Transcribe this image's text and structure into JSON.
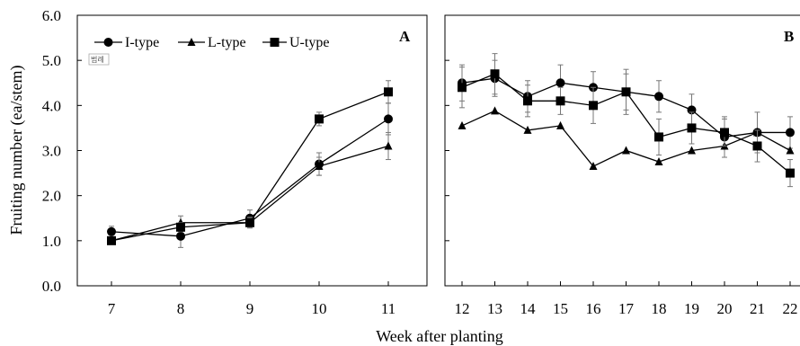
{
  "chart_data": [
    {
      "type": "line",
      "panel_label": "A",
      "x": [
        7,
        8,
        9,
        10,
        11
      ],
      "x_tick_labels": [
        "7",
        "8",
        "9",
        "10",
        "11"
      ],
      "ylim": [
        0,
        6
      ],
      "y_tick_labels": [
        "0.0",
        "1.0",
        "2.0",
        "3.0",
        "4.0",
        "5.0",
        "6.0"
      ],
      "ylabel": "Fruiting number (ea/stem)",
      "xlabel": "Week after planting",
      "legend_placement": "top-left",
      "legend_tag": "범례",
      "series": [
        {
          "name": "I-type",
          "marker": "circle",
          "values": [
            1.2,
            1.1,
            1.5,
            2.7,
            3.7
          ],
          "errors": [
            0.12,
            0.25,
            0.18,
            0.25,
            0.35
          ]
        },
        {
          "name": "L-type",
          "marker": "triangle",
          "values": [
            1.0,
            1.4,
            1.4,
            2.65,
            3.1
          ],
          "errors": [
            0.08,
            0.15,
            0.12,
            0.2,
            0.3
          ]
        },
        {
          "name": "U-type",
          "marker": "square",
          "values": [
            1.0,
            1.3,
            1.4,
            3.7,
            4.3
          ],
          "errors": [
            0.05,
            0.1,
            0.1,
            0.15,
            0.25
          ]
        }
      ]
    },
    {
      "type": "line",
      "panel_label": "B",
      "x": [
        12,
        13,
        14,
        15,
        16,
        17,
        18,
        19,
        20,
        21,
        22
      ],
      "x_tick_labels": [
        "12",
        "13",
        "14",
        "15",
        "16",
        "17",
        "18",
        "19",
        "20",
        "21",
        "22"
      ],
      "ylim": [
        0,
        6
      ],
      "series": [
        {
          "name": "I-type",
          "marker": "circle",
          "values": [
            4.5,
            4.6,
            4.2,
            4.5,
            4.4,
            4.3,
            4.2,
            3.9,
            3.3,
            3.4,
            3.4
          ],
          "errors": [
            0.4,
            0.4,
            0.35,
            0.4,
            0.35,
            0.4,
            0.35,
            0.35,
            0.45,
            0.45,
            0.35
          ]
        },
        {
          "name": "L-type",
          "marker": "triangle",
          "values": [
            3.55,
            3.88,
            3.45,
            3.55,
            2.65,
            3.0,
            2.75,
            3.0,
            3.1,
            3.4,
            3.0
          ]
        },
        {
          "name": "U-type",
          "marker": "square",
          "values": [
            4.4,
            4.7,
            4.1,
            4.1,
            4.0,
            4.3,
            3.3,
            3.5,
            3.4,
            3.1,
            2.5
          ],
          "errors": [
            0.45,
            0.45,
            0.35,
            0.3,
            0.4,
            0.5,
            0.4,
            0.35,
            0.3,
            0.35,
            0.3
          ]
        }
      ]
    }
  ]
}
